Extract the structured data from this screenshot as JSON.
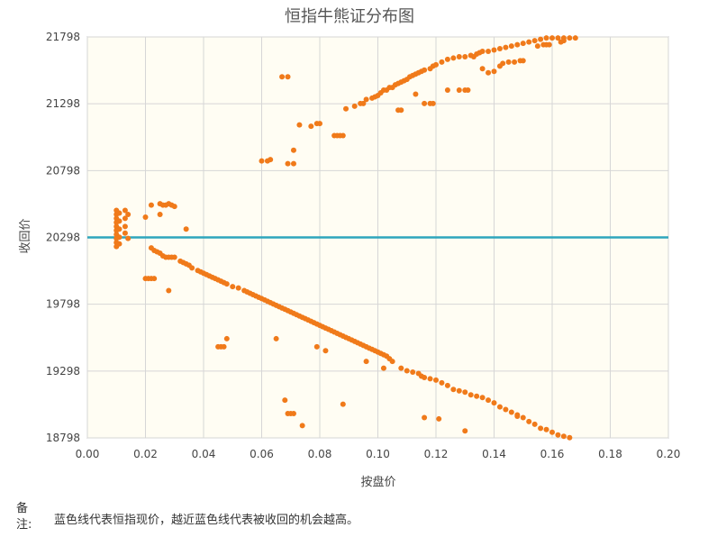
{
  "chart_data": {
    "type": "scatter",
    "title": "恒指牛熊证分布图",
    "xlabel": "按盘价",
    "ylabel": "收回价",
    "xlim": [
      0.0,
      0.2
    ],
    "ylim": [
      18798,
      21798
    ],
    "x_ticks": [
      "0.00",
      "0.02",
      "0.04",
      "0.06",
      "0.08",
      "0.10",
      "0.12",
      "0.14",
      "0.16",
      "0.18",
      "0.20"
    ],
    "y_ticks": [
      "18798",
      "19298",
      "19798",
      "20298",
      "20798",
      "21298",
      "21798"
    ],
    "grid": true,
    "reference_line": {
      "y": 20298,
      "color": "#2ea6bd"
    },
    "point_color": "#f07a1a",
    "points": [
      [
        0.01,
        20500
      ],
      [
        0.01,
        20470
      ],
      [
        0.01,
        20440
      ],
      [
        0.01,
        20410
      ],
      [
        0.01,
        20380
      ],
      [
        0.01,
        20350
      ],
      [
        0.01,
        20320
      ],
      [
        0.01,
        20290
      ],
      [
        0.01,
        20260
      ],
      [
        0.01,
        20230
      ],
      [
        0.011,
        20480
      ],
      [
        0.011,
        20420
      ],
      [
        0.011,
        20360
      ],
      [
        0.011,
        20300
      ],
      [
        0.011,
        20250
      ],
      [
        0.013,
        20500
      ],
      [
        0.013,
        20440
      ],
      [
        0.013,
        20380
      ],
      [
        0.013,
        20330
      ],
      [
        0.014,
        20470
      ],
      [
        0.014,
        20290
      ],
      [
        0.02,
        20450
      ],
      [
        0.022,
        20540
      ],
      [
        0.025,
        20470
      ],
      [
        0.025,
        20550
      ],
      [
        0.026,
        20540
      ],
      [
        0.027,
        20540
      ],
      [
        0.028,
        20550
      ],
      [
        0.029,
        20540
      ],
      [
        0.03,
        20530
      ],
      [
        0.034,
        20360
      ],
      [
        0.02,
        19990
      ],
      [
        0.021,
        19990
      ],
      [
        0.022,
        19990
      ],
      [
        0.023,
        19990
      ],
      [
        0.028,
        19900
      ],
      [
        0.022,
        20220
      ],
      [
        0.023,
        20200
      ],
      [
        0.024,
        20190
      ],
      [
        0.025,
        20180
      ],
      [
        0.026,
        20160
      ],
      [
        0.027,
        20150
      ],
      [
        0.028,
        20150
      ],
      [
        0.029,
        20150
      ],
      [
        0.03,
        20150
      ],
      [
        0.032,
        20120
      ],
      [
        0.033,
        20110
      ],
      [
        0.034,
        20100
      ],
      [
        0.035,
        20090
      ],
      [
        0.036,
        20070
      ],
      [
        0.038,
        20050
      ],
      [
        0.039,
        20040
      ],
      [
        0.04,
        20030
      ],
      [
        0.041,
        20020
      ],
      [
        0.042,
        20010
      ],
      [
        0.043,
        20000
      ],
      [
        0.044,
        19990
      ],
      [
        0.045,
        19980
      ],
      [
        0.046,
        19970
      ],
      [
        0.047,
        19960
      ],
      [
        0.048,
        19950
      ],
      [
        0.05,
        19930
      ],
      [
        0.052,
        19920
      ],
      [
        0.054,
        19900
      ],
      [
        0.055,
        19890
      ],
      [
        0.056,
        19880
      ],
      [
        0.057,
        19870
      ],
      [
        0.058,
        19860
      ],
      [
        0.059,
        19850
      ],
      [
        0.06,
        19840
      ],
      [
        0.061,
        19830
      ],
      [
        0.062,
        19820
      ],
      [
        0.063,
        19810
      ],
      [
        0.064,
        19800
      ],
      [
        0.065,
        19790
      ],
      [
        0.066,
        19780
      ],
      [
        0.067,
        19770
      ],
      [
        0.068,
        19760
      ],
      [
        0.069,
        19750
      ],
      [
        0.07,
        19740
      ],
      [
        0.071,
        19730
      ],
      [
        0.072,
        19720
      ],
      [
        0.073,
        19710
      ],
      [
        0.074,
        19700
      ],
      [
        0.075,
        19690
      ],
      [
        0.076,
        19680
      ],
      [
        0.077,
        19670
      ],
      [
        0.078,
        19660
      ],
      [
        0.079,
        19650
      ],
      [
        0.08,
        19640
      ],
      [
        0.081,
        19630
      ],
      [
        0.082,
        19620
      ],
      [
        0.083,
        19610
      ],
      [
        0.084,
        19600
      ],
      [
        0.085,
        19590
      ],
      [
        0.086,
        19580
      ],
      [
        0.087,
        19570
      ],
      [
        0.088,
        19560
      ],
      [
        0.089,
        19550
      ],
      [
        0.09,
        19540
      ],
      [
        0.091,
        19530
      ],
      [
        0.092,
        19520
      ],
      [
        0.093,
        19510
      ],
      [
        0.094,
        19500
      ],
      [
        0.095,
        19490
      ],
      [
        0.096,
        19480
      ],
      [
        0.097,
        19470
      ],
      [
        0.098,
        19460
      ],
      [
        0.099,
        19450
      ],
      [
        0.1,
        19440
      ],
      [
        0.101,
        19430
      ],
      [
        0.102,
        19420
      ],
      [
        0.103,
        19410
      ],
      [
        0.104,
        19390
      ],
      [
        0.105,
        19370
      ],
      [
        0.108,
        19320
      ],
      [
        0.11,
        19300
      ],
      [
        0.112,
        19290
      ],
      [
        0.114,
        19280
      ],
      [
        0.115,
        19260
      ],
      [
        0.116,
        19250
      ],
      [
        0.118,
        19240
      ],
      [
        0.12,
        19230
      ],
      [
        0.122,
        19210
      ],
      [
        0.124,
        19190
      ],
      [
        0.126,
        19160
      ],
      [
        0.128,
        19150
      ],
      [
        0.13,
        19140
      ],
      [
        0.132,
        19120
      ],
      [
        0.134,
        19110
      ],
      [
        0.136,
        19100
      ],
      [
        0.138,
        19080
      ],
      [
        0.14,
        19060
      ],
      [
        0.142,
        19030
      ],
      [
        0.144,
        19010
      ],
      [
        0.146,
        18990
      ],
      [
        0.148,
        18970
      ],
      [
        0.15,
        18950
      ],
      [
        0.152,
        18920
      ],
      [
        0.154,
        18900
      ],
      [
        0.156,
        18870
      ],
      [
        0.158,
        18860
      ],
      [
        0.16,
        18840
      ],
      [
        0.162,
        18820
      ],
      [
        0.164,
        18810
      ],
      [
        0.166,
        18800
      ],
      [
        0.048,
        19540
      ],
      [
        0.046,
        19480
      ],
      [
        0.047,
        19480
      ],
      [
        0.045,
        19480
      ],
      [
        0.065,
        19540
      ],
      [
        0.079,
        19480
      ],
      [
        0.082,
        19450
      ],
      [
        0.096,
        19370
      ],
      [
        0.102,
        19320
      ],
      [
        0.068,
        19080
      ],
      [
        0.069,
        18980
      ],
      [
        0.07,
        18980
      ],
      [
        0.071,
        18980
      ],
      [
        0.074,
        18890
      ],
      [
        0.088,
        19050
      ],
      [
        0.116,
        18950
      ],
      [
        0.121,
        18940
      ],
      [
        0.13,
        18850
      ],
      [
        0.148,
        18960
      ],
      [
        0.06,
        20870
      ],
      [
        0.062,
        20870
      ],
      [
        0.063,
        20880
      ],
      [
        0.069,
        20850
      ],
      [
        0.071,
        20850
      ],
      [
        0.071,
        20950
      ],
      [
        0.073,
        21140
      ],
      [
        0.077,
        21130
      ],
      [
        0.079,
        21150
      ],
      [
        0.08,
        21150
      ],
      [
        0.085,
        21060
      ],
      [
        0.086,
        21060
      ],
      [
        0.087,
        21060
      ],
      [
        0.088,
        21060
      ],
      [
        0.089,
        21260
      ],
      [
        0.092,
        21280
      ],
      [
        0.094,
        21300
      ],
      [
        0.095,
        21300
      ],
      [
        0.096,
        21330
      ],
      [
        0.098,
        21340
      ],
      [
        0.099,
        21350
      ],
      [
        0.1,
        21360
      ],
      [
        0.101,
        21380
      ],
      [
        0.102,
        21400
      ],
      [
        0.103,
        21400
      ],
      [
        0.104,
        21420
      ],
      [
        0.105,
        21420
      ],
      [
        0.106,
        21440
      ],
      [
        0.107,
        21450
      ],
      [
        0.108,
        21460
      ],
      [
        0.109,
        21470
      ],
      [
        0.11,
        21480
      ],
      [
        0.111,
        21500
      ],
      [
        0.112,
        21510
      ],
      [
        0.113,
        21520
      ],
      [
        0.114,
        21530
      ],
      [
        0.115,
        21540
      ],
      [
        0.116,
        21550
      ],
      [
        0.118,
        21560
      ],
      [
        0.119,
        21580
      ],
      [
        0.12,
        21590
      ],
      [
        0.122,
        21610
      ],
      [
        0.124,
        21630
      ],
      [
        0.126,
        21640
      ],
      [
        0.128,
        21650
      ],
      [
        0.13,
        21650
      ],
      [
        0.132,
        21660
      ],
      [
        0.134,
        21670
      ],
      [
        0.135,
        21680
      ],
      [
        0.136,
        21690
      ],
      [
        0.138,
        21690
      ],
      [
        0.14,
        21700
      ],
      [
        0.142,
        21710
      ],
      [
        0.144,
        21720
      ],
      [
        0.146,
        21730
      ],
      [
        0.148,
        21740
      ],
      [
        0.15,
        21750
      ],
      [
        0.152,
        21760
      ],
      [
        0.154,
        21770
      ],
      [
        0.156,
        21780
      ],
      [
        0.158,
        21790
      ],
      [
        0.16,
        21790
      ],
      [
        0.162,
        21790
      ],
      [
        0.164,
        21790
      ],
      [
        0.166,
        21790
      ],
      [
        0.168,
        21790
      ],
      [
        0.067,
        21500
      ],
      [
        0.069,
        21500
      ],
      [
        0.107,
        21250
      ],
      [
        0.108,
        21250
      ],
      [
        0.113,
        21370
      ],
      [
        0.116,
        21300
      ],
      [
        0.118,
        21300
      ],
      [
        0.119,
        21300
      ],
      [
        0.124,
        21400
      ],
      [
        0.128,
        21400
      ],
      [
        0.13,
        21400
      ],
      [
        0.131,
        21400
      ],
      [
        0.133,
        21650
      ],
      [
        0.136,
        21560
      ],
      [
        0.138,
        21530
      ],
      [
        0.14,
        21540
      ],
      [
        0.142,
        21580
      ],
      [
        0.143,
        21600
      ],
      [
        0.145,
        21610
      ],
      [
        0.147,
        21610
      ],
      [
        0.149,
        21620
      ],
      [
        0.15,
        21620
      ],
      [
        0.155,
        21730
      ],
      [
        0.157,
        21740
      ],
      [
        0.158,
        21740
      ],
      [
        0.159,
        21740
      ],
      [
        0.163,
        21760
      ],
      [
        0.164,
        21770
      ]
    ]
  },
  "note": {
    "label": "备注:",
    "text": "蓝色线代表恒指现价，越近蓝色线代表被收回的机会越高。"
  }
}
